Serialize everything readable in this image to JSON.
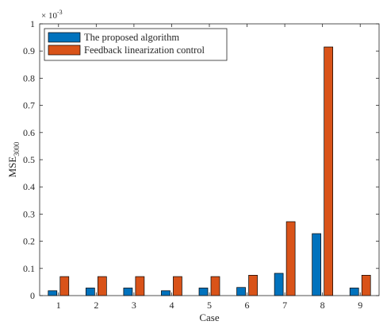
{
  "chart_data": {
    "type": "bar",
    "xlabel": "Case",
    "ylabel_main": "MSE",
    "ylabel_sub": "3000",
    "y_exponent_base": "× 10",
    "y_exponent_power": "-3",
    "ylim": [
      0,
      1
    ],
    "yticks": [
      "0",
      "0.1",
      "0.2",
      "0.3",
      "0.4",
      "0.5",
      "0.6",
      "0.7",
      "0.8",
      "0.9",
      "1"
    ],
    "categories": [
      "1",
      "2",
      "3",
      "4",
      "5",
      "6",
      "7",
      "8",
      "9"
    ],
    "legend_position": "top-left",
    "series": [
      {
        "name": "The proposed algorithm",
        "color": "#0072bd",
        "values": [
          0.018,
          0.028,
          0.028,
          0.018,
          0.028,
          0.03,
          0.082,
          0.228,
          0.028
        ]
      },
      {
        "name": "Feedback linearization control",
        "color": "#d95319",
        "values": [
          0.07,
          0.07,
          0.07,
          0.07,
          0.07,
          0.075,
          0.272,
          0.915,
          0.075
        ]
      }
    ]
  }
}
